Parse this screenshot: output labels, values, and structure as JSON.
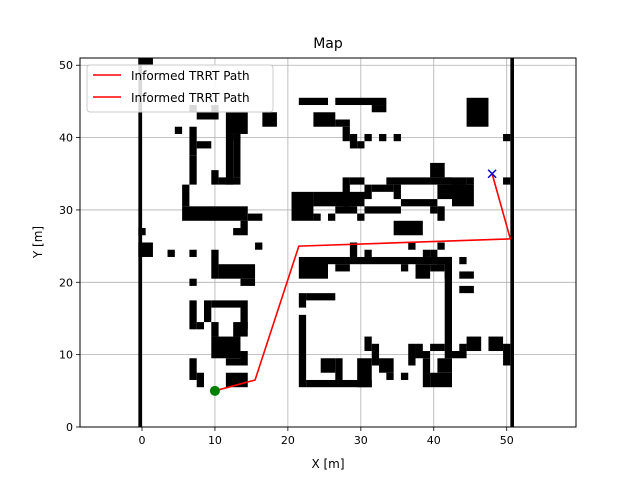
{
  "chart_data": {
    "type": "line",
    "title": "Map",
    "xlabel": "X [m]",
    "ylabel": "Y [m]",
    "xlim": [
      -8.5,
      59.5
    ],
    "ylim": [
      0,
      51
    ],
    "xticks": [
      0,
      10,
      20,
      30,
      40,
      50
    ],
    "yticks": [
      0,
      10,
      20,
      30,
      40,
      50
    ],
    "grid": true,
    "legend": {
      "placement": "top-left",
      "entries": [
        "Informed TRRT Path",
        "Informed TRRT Path"
      ]
    },
    "series": [
      {
        "name": "Informed TRRT Path",
        "color": "#ff0000",
        "x": [
          10,
          15.5,
          21.5,
          50.5,
          48
        ],
        "y": [
          5,
          6.5,
          25,
          26,
          35
        ]
      }
    ],
    "start": {
      "x": 10,
      "y": 5,
      "color": "#008000",
      "marker": "circle"
    },
    "goal": {
      "x": 48,
      "y": 35,
      "color": "#0000cc",
      "marker": "x"
    },
    "obstacles_color": "#000000",
    "obstacles": [
      [
        -0.5,
        0,
        0.5,
        51
      ],
      [
        50.5,
        0,
        0.5,
        51
      ],
      [
        -0.5,
        50,
        2,
        1
      ],
      [
        4.5,
        40.5,
        1,
        1
      ],
      [
        6.5,
        43.5,
        1,
        1
      ],
      [
        9.5,
        43.5,
        1,
        1
      ],
      [
        7.5,
        42.5,
        3,
        1
      ],
      [
        11.5,
        40.5,
        3,
        3
      ],
      [
        12.5,
        39.5,
        1,
        1
      ],
      [
        16.5,
        41.5,
        2,
        2
      ],
      [
        21.5,
        44.5,
        4,
        1
      ],
      [
        26.5,
        44.5,
        7,
        1
      ],
      [
        31.5,
        43.5,
        2,
        1
      ],
      [
        23.5,
        41.5,
        3,
        2
      ],
      [
        26.5,
        41.5,
        2,
        1
      ],
      [
        27.5,
        39.5,
        1,
        2
      ],
      [
        28.5,
        38.5,
        1,
        2
      ],
      [
        29.5,
        38.5,
        1,
        1
      ],
      [
        30.5,
        39.5,
        1,
        1
      ],
      [
        32.5,
        39.5,
        1,
        1
      ],
      [
        34.5,
        39.5,
        1,
        1
      ],
      [
        44.5,
        41.5,
        3,
        4
      ],
      [
        49.5,
        39.5,
        1,
        1
      ],
      [
        6.5,
        37.5,
        1,
        4
      ],
      [
        7.5,
        38.5,
        2,
        1
      ],
      [
        11.5,
        33.5,
        1,
        7
      ],
      [
        6.5,
        33.5,
        1,
        4
      ],
      [
        9.5,
        33.5,
        1,
        2
      ],
      [
        10.5,
        33.5,
        3,
        1
      ],
      [
        12.5,
        34.5,
        1,
        6
      ],
      [
        5.5,
        30.5,
        1,
        3
      ],
      [
        5.5,
        28.5,
        9,
        2
      ],
      [
        14.5,
        28.5,
        2,
        1
      ],
      [
        13.5,
        26.5,
        1,
        2
      ],
      [
        12.5,
        26.5,
        1,
        1
      ],
      [
        15.5,
        24.5,
        1,
        1
      ],
      [
        20.5,
        28.5,
        3,
        4
      ],
      [
        23.5,
        30.5,
        7,
        2
      ],
      [
        23.5,
        28.5,
        1,
        1
      ],
      [
        25.5,
        28.5,
        1,
        1
      ],
      [
        26.5,
        29.5,
        3,
        1
      ],
      [
        29.5,
        28.5,
        1,
        1
      ],
      [
        30.5,
        29.5,
        5,
        1
      ],
      [
        35.5,
        30.5,
        5,
        1
      ],
      [
        39.5,
        29.5,
        1,
        1
      ],
      [
        40.5,
        28.5,
        1,
        2
      ],
      [
        27.5,
        30.5,
        1,
        4
      ],
      [
        28.5,
        33.5,
        2,
        1
      ],
      [
        30.5,
        31.5,
        1,
        2
      ],
      [
        31.5,
        32.5,
        3,
        1
      ],
      [
        33.5,
        33.5,
        9,
        1
      ],
      [
        34.5,
        31.5,
        1,
        2
      ],
      [
        39.5,
        34.5,
        2,
        2
      ],
      [
        40.5,
        31.5,
        4,
        2
      ],
      [
        41.5,
        33.5,
        3,
        1
      ],
      [
        42.5,
        30.5,
        3,
        3
      ],
      [
        44.5,
        33.5,
        1,
        1
      ],
      [
        49.5,
        33.5,
        1,
        1
      ],
      [
        34.5,
        26.5,
        4,
        2
      ],
      [
        -0.5,
        23.5,
        2,
        2
      ],
      [
        -0.5,
        26.5,
        1,
        1
      ],
      [
        3.5,
        23.5,
        1,
        1
      ],
      [
        6.5,
        23.5,
        1,
        1
      ],
      [
        9.5,
        20.5,
        1,
        4
      ],
      [
        10.5,
        20.5,
        5,
        2
      ],
      [
        13.5,
        19.5,
        2,
        1
      ],
      [
        6.5,
        19.5,
        1,
        1
      ],
      [
        6.5,
        13.5,
        1,
        4
      ],
      [
        7.5,
        13.5,
        1,
        1
      ],
      [
        8.5,
        14.5,
        1,
        3
      ],
      [
        9.5,
        16.5,
        4,
        1
      ],
      [
        9.5,
        12.5,
        1,
        2
      ],
      [
        9.5,
        9.5,
        4,
        3
      ],
      [
        12.5,
        12.5,
        2,
        2
      ],
      [
        13.5,
        13.5,
        1,
        4
      ],
      [
        6.5,
        6.5,
        1,
        3
      ],
      [
        7.5,
        5.5,
        1,
        2
      ],
      [
        11.5,
        5.5,
        3,
        2
      ],
      [
        13.5,
        8.5,
        1,
        2
      ],
      [
        11.5,
        8.5,
        2,
        1
      ],
      [
        21.5,
        20.5,
        4,
        3
      ],
      [
        25.5,
        22.5,
        17,
        1
      ],
      [
        26.5,
        21.5,
        2,
        1
      ],
      [
        28.5,
        23.5,
        1,
        2
      ],
      [
        30.5,
        23.5,
        1,
        1
      ],
      [
        35.5,
        21.5,
        1,
        1
      ],
      [
        37.5,
        20.5,
        2,
        2
      ],
      [
        39.5,
        21.5,
        2,
        1
      ],
      [
        36.5,
        24.5,
        1,
        1
      ],
      [
        38.5,
        23.5,
        1,
        1
      ],
      [
        40.5,
        22.5,
        2,
        1
      ],
      [
        41.5,
        20.5,
        1,
        3
      ],
      [
        43.5,
        20.5,
        2,
        1
      ],
      [
        43.5,
        22.5,
        1,
        1
      ],
      [
        22.5,
        17.5,
        4,
        1
      ],
      [
        21.5,
        16.5,
        1,
        2
      ],
      [
        43.5,
        18.5,
        2,
        1
      ],
      [
        41.5,
        9.5,
        1,
        12
      ],
      [
        21.5,
        5.5,
        1,
        10
      ],
      [
        22.5,
        5.5,
        9,
        1
      ],
      [
        24.5,
        7.5,
        2,
        2
      ],
      [
        26.5,
        6.5,
        1,
        3
      ],
      [
        29.5,
        5.5,
        2,
        4
      ],
      [
        30.5,
        10.5,
        1,
        2
      ],
      [
        31.5,
        8.5,
        1,
        3
      ],
      [
        32.5,
        7.5,
        2,
        2
      ],
      [
        33.5,
        6.5,
        1,
        1
      ],
      [
        35.5,
        6.5,
        1,
        1
      ],
      [
        36.5,
        8.5,
        1,
        3
      ],
      [
        37.5,
        9.5,
        2,
        1
      ],
      [
        37.5,
        10.5,
        1,
        1
      ],
      [
        38.5,
        5.5,
        1,
        4
      ],
      [
        39.5,
        5.5,
        3,
        2
      ],
      [
        40.5,
        7.5,
        2,
        2
      ],
      [
        39.5,
        10.5,
        2,
        1
      ],
      [
        42.5,
        9.5,
        2,
        1
      ],
      [
        43.5,
        10.5,
        1,
        1
      ],
      [
        44.5,
        10.5,
        2,
        2
      ],
      [
        47.5,
        10.5,
        2,
        2
      ],
      [
        49.5,
        8.5,
        1,
        3
      ],
      [
        40.5,
        24.5,
        1,
        1
      ],
      [
        39.5,
        23.5,
        1,
        1
      ]
    ]
  }
}
